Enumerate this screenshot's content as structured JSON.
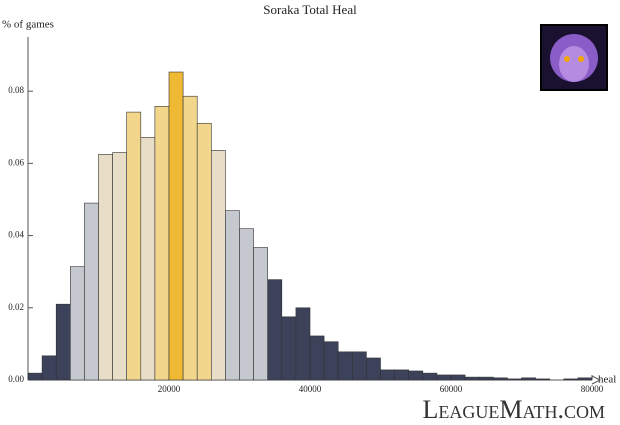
{
  "chart_data": {
    "type": "histogram",
    "title": "Soraka Total Heal",
    "ylabel": "% of games",
    "xlabel": "heal",
    "watermark": "LeagueMath.com",
    "bins": [
      0,
      2000,
      4000,
      6000,
      8000,
      10000,
      12000,
      14000,
      16000,
      18000,
      20000,
      22000,
      24000,
      26000,
      28000,
      30000,
      32000,
      34000,
      36000,
      38000,
      40000,
      42000,
      44000,
      46000,
      48000,
      50000,
      52000,
      54000,
      56000,
      58000,
      60000,
      62000,
      64000,
      66000,
      68000,
      70000,
      72000,
      74000,
      76000,
      78000,
      80000
    ],
    "counts": [
      0.0019,
      0.0067,
      0.021,
      0.0314,
      0.049,
      0.0625,
      0.063,
      0.0742,
      0.0672,
      0.0758,
      0.0853,
      0.0786,
      0.0711,
      0.0636,
      0.0469,
      0.0419,
      0.0367,
      0.0278,
      0.0175,
      0.02,
      0.0122,
      0.0106,
      0.0078,
      0.0078,
      0.0061,
      0.0028,
      0.0028,
      0.0025,
      0.0019,
      0.0014,
      0.0014,
      0.0008,
      0.0008,
      0.0006,
      0.0003,
      0.0006,
      0.0003,
      0,
      0.0003,
      0.0006
    ],
    "colors": [
      "#3b4259",
      "#3b4259",
      "#3b4259",
      "#c6c8cf",
      "#c6c8cf",
      "#e8dec8",
      "#e8dec8",
      "#f2d68c",
      "#e8dec8",
      "#f2d68c",
      "#f0b934",
      "#f2d68c",
      "#f2d68c",
      "#e8dec8",
      "#c6c8cf",
      "#c6c8cf",
      "#c6c8cf",
      "#3b4259",
      "#3b4259",
      "#3b4259",
      "#3b4259",
      "#3b4259",
      "#3b4259",
      "#3b4259",
      "#3b4259",
      "#3b4259",
      "#3b4259",
      "#3b4259",
      "#3b4259",
      "#3b4259",
      "#3b4259",
      "#3b4259",
      "#3b4259",
      "#3b4259",
      "#3b4259",
      "#3b4259",
      "#3b4259",
      "#3b4259",
      "#3b4259",
      "#3b4259"
    ],
    "xlim": [
      0,
      80000
    ],
    "ylim": [
      0,
      0.095
    ],
    "xticks": [
      20000,
      40000,
      60000,
      80000
    ],
    "yticks": [
      {
        "value": 0,
        "label": "0.00"
      },
      {
        "value": 0.02,
        "label": "0.02"
      },
      {
        "value": 0.04,
        "label": "0.04"
      },
      {
        "value": 0.06,
        "label": "0.06"
      },
      {
        "value": 0.08,
        "label": "0.08"
      }
    ]
  }
}
